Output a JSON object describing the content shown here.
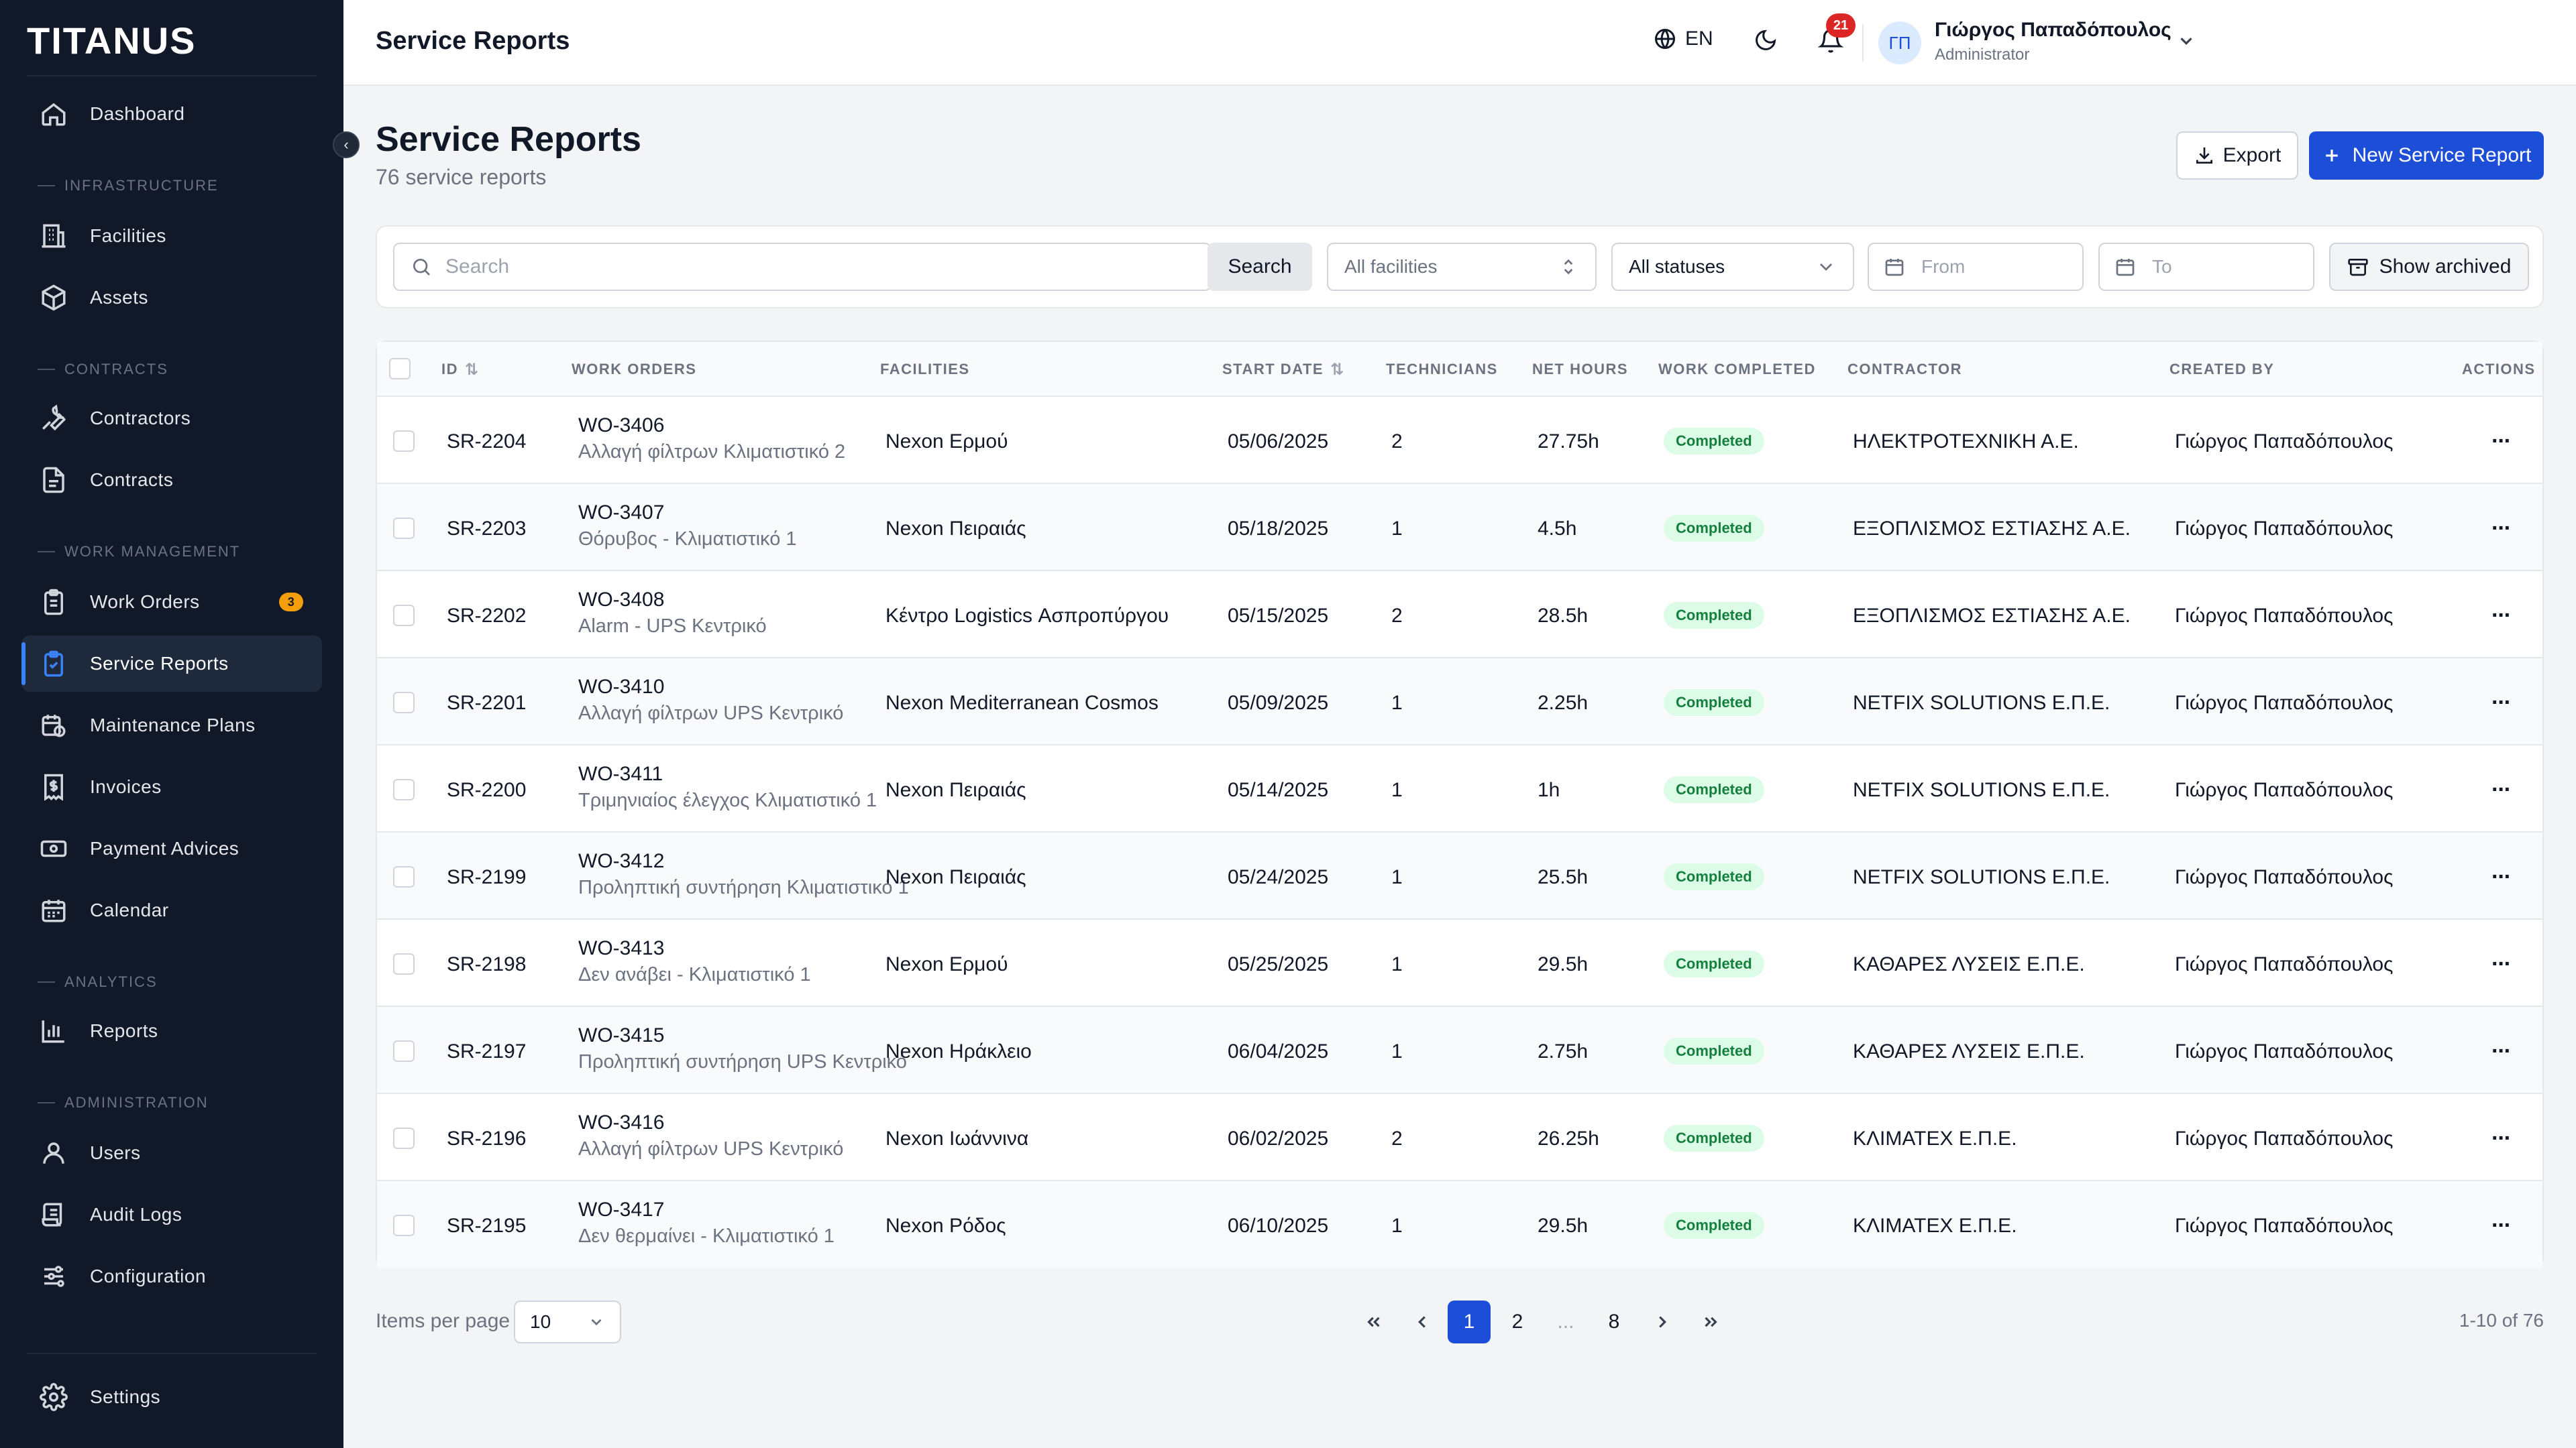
{
  "app": {
    "logo": "TITANUS"
  },
  "sidebar": {
    "items": [
      {
        "label": "Dashboard",
        "icon": "home-icon"
      },
      {
        "section": "INFRASTRUCTURE"
      },
      {
        "label": "Facilities",
        "icon": "building-icon"
      },
      {
        "label": "Assets",
        "icon": "box-icon"
      },
      {
        "section": "CONTRACTS"
      },
      {
        "label": "Contractors",
        "icon": "wrench-icon"
      },
      {
        "label": "Contracts",
        "icon": "document-icon"
      },
      {
        "section": "WORK MANAGEMENT"
      },
      {
        "label": "Work Orders",
        "icon": "clipboard-icon",
        "badge": "3"
      },
      {
        "label": "Service Reports",
        "icon": "clipboard-check-icon",
        "active": true
      },
      {
        "label": "Maintenance Plans",
        "icon": "calendar-clock-icon"
      },
      {
        "label": "Invoices",
        "icon": "receipt-icon"
      },
      {
        "label": "Payment Advices",
        "icon": "banknote-icon"
      },
      {
        "label": "Calendar",
        "icon": "calendar-icon"
      },
      {
        "section": "ANALYTICS"
      },
      {
        "label": "Reports",
        "icon": "bar-chart-icon"
      },
      {
        "section": "ADMINISTRATION"
      },
      {
        "label": "Users",
        "icon": "user-icon"
      },
      {
        "label": "Audit Logs",
        "icon": "scroll-icon"
      },
      {
        "label": "Configuration",
        "icon": "sliders-icon"
      },
      {
        "label": "Settings",
        "icon": "gear-icon"
      }
    ]
  },
  "topbar": {
    "title": "Service Reports",
    "language": "EN",
    "notification_count": "21",
    "user": {
      "initials": "ΓΠ",
      "name": "Γιώργος Παπαδόπουλος",
      "role": "Administrator"
    }
  },
  "header": {
    "title": "Service Reports",
    "subtitle": "76 service reports",
    "export_label": "Export",
    "new_label": "New Service Report"
  },
  "filters": {
    "search_placeholder": "Search",
    "search_button": "Search",
    "facilities": "All facilities",
    "statuses": "All statuses",
    "from": "From",
    "to": "To",
    "archived": "Show archived"
  },
  "table": {
    "columns": [
      "ID",
      "WORK ORDERS",
      "FACILITIES",
      "START DATE",
      "TECHNICIANS",
      "NET HOURS",
      "WORK COMPLETED",
      "CONTRACTOR",
      "CREATED BY",
      "ACTIONS"
    ],
    "rows": [
      {
        "id": "SR-2204",
        "wo": "WO-3406",
        "wo_desc": "Αλλαγή φίλτρων Κλιματιστικό 2",
        "facility": "Nexon Ερμού",
        "date": "05/06/2025",
        "techs": "2",
        "hours": "27.75h",
        "status": "Completed",
        "contractor": "ΗΛΕΚΤΡΟΤΕΧΝΙΚΗ Α.Ε.",
        "created_by": "Γιώργος Παπαδόπουλος"
      },
      {
        "id": "SR-2203",
        "wo": "WO-3407",
        "wo_desc": "Θόρυβος - Κλιματιστικό 1",
        "facility": "Nexon Πειραιάς",
        "date": "05/18/2025",
        "techs": "1",
        "hours": "4.5h",
        "status": "Completed",
        "contractor": "ΕΞΟΠΛΙΣΜΟΣ ΕΣΤΙΑΣΗΣ Α.Ε.",
        "created_by": "Γιώργος Παπαδόπουλος"
      },
      {
        "id": "SR-2202",
        "wo": "WO-3408",
        "wo_desc": "Alarm - UPS Κεντρικό",
        "facility": "Κέντρο Logistics Ασπροπύργου",
        "date": "05/15/2025",
        "techs": "2",
        "hours": "28.5h",
        "status": "Completed",
        "contractor": "ΕΞΟΠΛΙΣΜΟΣ ΕΣΤΙΑΣΗΣ Α.Ε.",
        "created_by": "Γιώργος Παπαδόπουλος"
      },
      {
        "id": "SR-2201",
        "wo": "WO-3410",
        "wo_desc": "Αλλαγή φίλτρων UPS Κεντρικό",
        "facility": "Nexon Mediterranean Cosmos",
        "date": "05/09/2025",
        "techs": "1",
        "hours": "2.25h",
        "status": "Completed",
        "contractor": "NETFIX SOLUTIONS Ε.Π.Ε.",
        "created_by": "Γιώργος Παπαδόπουλος"
      },
      {
        "id": "SR-2200",
        "wo": "WO-3411",
        "wo_desc": "Τριμηνιαίος έλεγχος Κλιματιστικό 1",
        "facility": "Nexon Πειραιάς",
        "date": "05/14/2025",
        "techs": "1",
        "hours": "1h",
        "status": "Completed",
        "contractor": "NETFIX SOLUTIONS Ε.Π.Ε.",
        "created_by": "Γιώργος Παπαδόπουλος"
      },
      {
        "id": "SR-2199",
        "wo": "WO-3412",
        "wo_desc": "Προληπτική συντήρηση Κλιματιστικό 1",
        "facility": "Nexon Πειραιάς",
        "date": "05/24/2025",
        "techs": "1",
        "hours": "25.5h",
        "status": "Completed",
        "contractor": "NETFIX SOLUTIONS Ε.Π.Ε.",
        "created_by": "Γιώργος Παπαδόπουλος"
      },
      {
        "id": "SR-2198",
        "wo": "WO-3413",
        "wo_desc": "Δεν ανάβει - Κλιματιστικό 1",
        "facility": "Nexon Ερμού",
        "date": "05/25/2025",
        "techs": "1",
        "hours": "29.5h",
        "status": "Completed",
        "contractor": "ΚΑΘΑΡΕΣ ΛΥΣΕΙΣ Ε.Π.Ε.",
        "created_by": "Γιώργος Παπαδόπουλος"
      },
      {
        "id": "SR-2197",
        "wo": "WO-3415",
        "wo_desc": "Προληπτική συντήρηση UPS Κεντρικό",
        "facility": "Nexon Ηράκλειο",
        "date": "06/04/2025",
        "techs": "1",
        "hours": "2.75h",
        "status": "Completed",
        "contractor": "ΚΑΘΑΡΕΣ ΛΥΣΕΙΣ Ε.Π.Ε.",
        "created_by": "Γιώργος Παπαδόπουλος"
      },
      {
        "id": "SR-2196",
        "wo": "WO-3416",
        "wo_desc": "Αλλαγή φίλτρων UPS Κεντρικό",
        "facility": "Nexon Ιωάννινα",
        "date": "06/02/2025",
        "techs": "2",
        "hours": "26.25h",
        "status": "Completed",
        "contractor": "ΚΛΙΜΑΤΕΧ Ε.Π.Ε.",
        "created_by": "Γιώργος Παπαδόπουλος"
      },
      {
        "id": "SR-2195",
        "wo": "WO-3417",
        "wo_desc": "Δεν θερμαίνει - Κλιματιστικό 1",
        "facility": "Nexon Ρόδος",
        "date": "06/10/2025",
        "techs": "1",
        "hours": "29.5h",
        "status": "Completed",
        "contractor": "ΚΛΙΜΑΤΕΧ Ε.Π.Ε.",
        "created_by": "Γιώργος Παπαδόπουλος"
      }
    ]
  },
  "pagination": {
    "items_per_page_label": "Items per page",
    "items_per_page": "10",
    "pages": [
      "1",
      "2",
      "...",
      "8"
    ],
    "current": "1",
    "range": "1-10 of 76"
  },
  "colors": {
    "accent": "#1d4ed8",
    "sidebar_bg": "#111827",
    "success_bg": "#dcfce7",
    "success_text": "#15803d",
    "notification": "#dc2626",
    "badge": "#f59e0b"
  }
}
